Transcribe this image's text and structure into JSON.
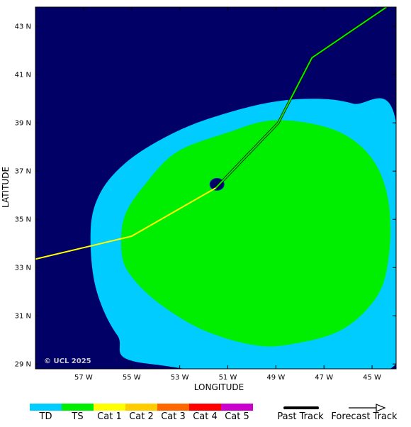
{
  "chart_data": {
    "type": "map",
    "xlabel": "LONGITUDE",
    "ylabel": "LATITUDE",
    "xlim": [
      -59,
      -44
    ],
    "ylim": [
      28.8,
      43.8
    ],
    "x_ticks": [
      {
        "value": -57,
        "label": "57 W"
      },
      {
        "value": -55,
        "label": "55 W"
      },
      {
        "value": -53,
        "label": "53 W"
      },
      {
        "value": -51,
        "label": "51 W"
      },
      {
        "value": -49,
        "label": "49 W"
      },
      {
        "value": -47,
        "label": "47 W"
      },
      {
        "value": -45,
        "label": "45 W"
      }
    ],
    "y_ticks": [
      {
        "value": 29,
        "label": "29 N"
      },
      {
        "value": 31,
        "label": "31 N"
      },
      {
        "value": 33,
        "label": "33 N"
      },
      {
        "value": 35,
        "label": "35 N"
      },
      {
        "value": 37,
        "label": "37 N"
      },
      {
        "value": 39,
        "label": "39 N"
      },
      {
        "value": 41,
        "label": "41 N"
      },
      {
        "value": 43,
        "label": "43 N"
      }
    ],
    "background_color": "#000066",
    "wind_fields": [
      {
        "category": "TD",
        "color": "#00ccff",
        "boundary": [
          [
            -52.0,
            39.1
          ],
          [
            -49.5,
            39.8
          ],
          [
            -47.5,
            40.0
          ],
          [
            -45.8,
            39.8
          ],
          [
            -44.0,
            39.0
          ],
          [
            -44.0,
            29.0
          ],
          [
            -54.2,
            29.0
          ],
          [
            -55.6,
            30.2
          ],
          [
            -56.5,
            32.2
          ],
          [
            -56.7,
            34.6
          ],
          [
            -56.3,
            36.1
          ],
          [
            -55.3,
            37.3
          ],
          [
            -53.8,
            38.3
          ]
        ]
      },
      {
        "category": "TS",
        "color": "#00ee00",
        "boundary": [
          [
            -51.0,
            38.6
          ],
          [
            -49.2,
            39.1
          ],
          [
            -47.2,
            38.9
          ],
          [
            -45.8,
            38.3
          ],
          [
            -44.8,
            37.2
          ],
          [
            -44.3,
            35.6
          ],
          [
            -44.3,
            33.5
          ],
          [
            -44.8,
            31.8
          ],
          [
            -46.3,
            30.4
          ],
          [
            -48.5,
            29.8
          ],
          [
            -50.0,
            29.8
          ],
          [
            -52.0,
            30.4
          ],
          [
            -53.7,
            31.4
          ],
          [
            -54.9,
            32.5
          ],
          [
            -55.4,
            33.5
          ],
          [
            -55.3,
            35.1
          ],
          [
            -54.4,
            36.5
          ],
          [
            -53.1,
            37.8
          ]
        ]
      }
    ],
    "storm_eye": {
      "lon": -51.45,
      "lat": 36.45,
      "color": "#000066"
    },
    "past_track": {
      "color": "#ffff00",
      "points": [
        [
          -59.0,
          33.35
        ],
        [
          -55.0,
          34.3
        ],
        [
          -51.5,
          36.3
        ]
      ]
    },
    "forecast_track": {
      "color": "#00ee00",
      "points": [
        [
          -51.5,
          36.3
        ],
        [
          -48.9,
          39.0
        ],
        [
          -47.5,
          41.7
        ],
        [
          -44.4,
          43.8
        ]
      ]
    },
    "copyright": "© UCL 2025"
  },
  "legend": {
    "categories": [
      {
        "label": "TD",
        "color": "#00ccff"
      },
      {
        "label": "TS",
        "color": "#00ee00"
      },
      {
        "label": "Cat 1",
        "color": "#ffff00"
      },
      {
        "label": "Cat 2",
        "color": "#ffcc00"
      },
      {
        "label": "Cat 3",
        "color": "#ff6600"
      },
      {
        "label": "Cat 4",
        "color": "#ff0000"
      },
      {
        "label": "Cat 5",
        "color": "#cc00cc"
      }
    ],
    "past_track_label": "Past Track",
    "forecast_track_label": "Forecast Track"
  }
}
